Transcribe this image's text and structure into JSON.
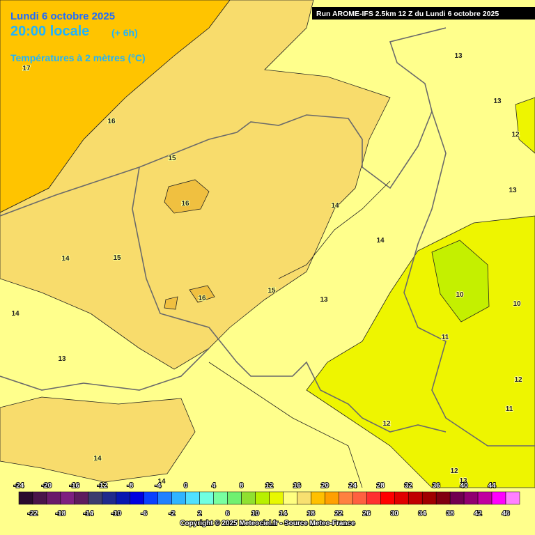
{
  "header": {
    "date": "Lundi 6 octobre 2025",
    "time": "20:00 locale",
    "offset": "(+ 6h)",
    "variable": "Températures à 2 mètres (°C)",
    "run": "Run AROME-IFS 2.5km 12 Z du Lundi 6 octobre 2025"
  },
  "contour_labels": [
    "17",
    "16",
    "15",
    "16",
    "14",
    "14",
    "15",
    "14",
    "15",
    "16",
    "13",
    "14",
    "13",
    "13",
    "13",
    "12",
    "13",
    "10",
    "10",
    "11",
    "12",
    "11",
    "12",
    "14",
    "14",
    "12",
    "13"
  ],
  "colorbar": {
    "top_labels": [
      -24,
      -20,
      -16,
      -12,
      -8,
      -4,
      0,
      4,
      8,
      12,
      16,
      20,
      24,
      28,
      32,
      36,
      40,
      44
    ],
    "bottom_labels": [
      -22,
      -18,
      -14,
      -10,
      -6,
      -2,
      2,
      6,
      10,
      14,
      18,
      22,
      26,
      30,
      34,
      38,
      42,
      46
    ],
    "colors": [
      "#2a0a2e",
      "#4a144a",
      "#6a1a6a",
      "#7e2080",
      "#5e1c5e",
      "#3c3c6e",
      "#202a8c",
      "#0818b0",
      "#0000e0",
      "#0a40ff",
      "#2080ff",
      "#30b4ff",
      "#50e0ff",
      "#70ffe0",
      "#78ffa0",
      "#70f070",
      "#90e030",
      "#b8f000",
      "#e8f800",
      "#ffff80",
      "#f8e070",
      "#ffc000",
      "#ffa000",
      "#ff8040",
      "#ff6040",
      "#ff3030",
      "#ff0000",
      "#e00000",
      "#c00000",
      "#a00000",
      "#800010",
      "#700050",
      "#900070",
      "#c000a0",
      "#ff00ff",
      "#ff80ff"
    ]
  },
  "footer": {
    "copyright": "Copyright © 2025 Meteociel.fr - Source Meteo-France"
  }
}
